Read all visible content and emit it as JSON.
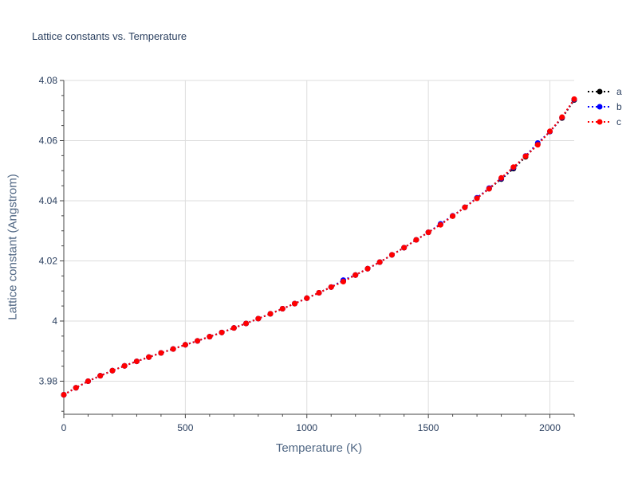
{
  "chart_data": {
    "type": "line",
    "title": "Lattice constants vs. Temperature",
    "xlabel": "Temperature (K)",
    "ylabel": "Lattice constant (Angstrom)",
    "xlim": [
      0,
      2100
    ],
    "ylim": [
      3.969,
      4.08
    ],
    "xticks": [
      0,
      500,
      1000,
      1500,
      2000
    ],
    "xtick_labels": [
      "0",
      "500",
      "1000",
      "1500",
      "2000"
    ],
    "yticks": [
      3.98,
      4.0,
      4.02,
      4.04,
      4.06,
      4.08
    ],
    "ytick_labels": [
      "3.98",
      "4",
      "4.02",
      "4.04",
      "4.06",
      "4.08"
    ],
    "grid": true,
    "legend_position": "top-right",
    "x": [
      0,
      50,
      100,
      150,
      200,
      250,
      300,
      350,
      400,
      450,
      500,
      550,
      600,
      650,
      700,
      750,
      800,
      850,
      900,
      950,
      1000,
      1050,
      1100,
      1150,
      1200,
      1250,
      1300,
      1350,
      1400,
      1450,
      1500,
      1550,
      1600,
      1650,
      1700,
      1750,
      1800,
      1850,
      1900,
      1950,
      2000,
      2050,
      2100
    ],
    "series": [
      {
        "name": "a",
        "color": "#000000",
        "values": [
          3.9755,
          3.9778,
          3.98,
          3.9818,
          3.9835,
          3.9851,
          3.9866,
          3.988,
          3.9894,
          3.9907,
          3.9921,
          3.9934,
          3.9948,
          3.9962,
          3.9977,
          3.9992,
          4.0008,
          4.0024,
          4.0041,
          4.0058,
          4.0076,
          4.0094,
          4.0113,
          4.0133,
          4.0153,
          4.0174,
          4.0196,
          4.022,
          4.0244,
          4.027,
          4.0295,
          4.0321,
          4.0349,
          4.0378,
          4.0409,
          4.044,
          4.0472,
          4.0507,
          4.0546,
          4.0588,
          4.063,
          4.0675,
          4.0735
        ]
      },
      {
        "name": "b",
        "color": "#0000ff",
        "values": [
          3.9755,
          3.9778,
          3.98,
          3.9818,
          3.9835,
          3.9851,
          3.9866,
          3.988,
          3.9894,
          3.9907,
          3.9921,
          3.9934,
          3.9948,
          3.9962,
          3.9977,
          3.9992,
          4.0008,
          4.0024,
          4.0041,
          4.0058,
          4.0076,
          4.0094,
          4.0113,
          4.0136,
          4.0153,
          4.0174,
          4.0196,
          4.022,
          4.0244,
          4.027,
          4.0295,
          4.0323,
          4.035,
          4.0378,
          4.041,
          4.0442,
          4.0474,
          4.051,
          4.0549,
          4.0592,
          4.063,
          4.0677,
          4.0737
        ]
      },
      {
        "name": "c",
        "color": "#ff0000",
        "values": [
          3.9755,
          3.9778,
          3.98,
          3.9818,
          3.9835,
          3.9851,
          3.9866,
          3.988,
          3.9894,
          3.9907,
          3.9921,
          3.9934,
          3.9948,
          3.9962,
          3.9977,
          3.9992,
          4.0008,
          4.0024,
          4.0041,
          4.0058,
          4.0076,
          4.0094,
          4.0113,
          4.0131,
          4.0153,
          4.0174,
          4.0196,
          4.022,
          4.0244,
          4.027,
          4.0295,
          4.032,
          4.0349,
          4.0378,
          4.0408,
          4.044,
          4.0476,
          4.0512,
          4.0548,
          4.0586,
          4.0631,
          4.0678,
          4.0738
        ]
      }
    ]
  }
}
